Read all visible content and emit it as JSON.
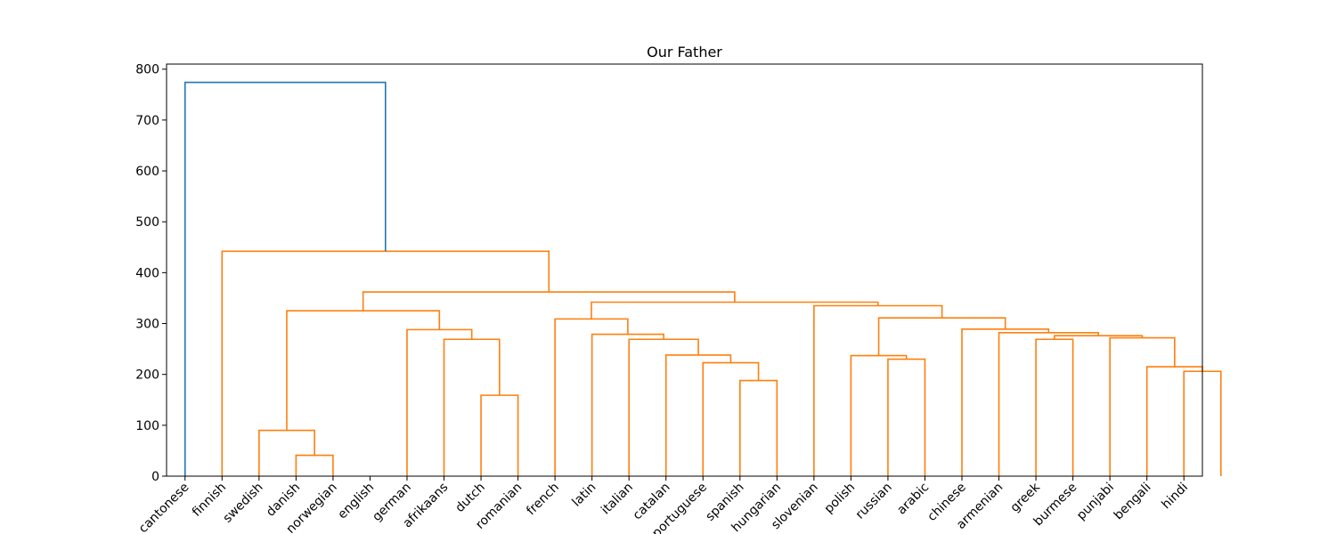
{
  "chart_data": {
    "type": "dendrogram",
    "title": "Our Father",
    "xlabel": "",
    "ylabel": "",
    "ylim": [
      0,
      810
    ],
    "yticks": [
      0,
      100,
      200,
      300,
      400,
      500,
      600,
      700,
      800
    ],
    "leaves": [
      "cantonese",
      "finnish",
      "swedish",
      "danish",
      "norwegian",
      "english",
      "german",
      "afrikaans",
      "dutch",
      "romanian",
      "french",
      "latin",
      "italian",
      "catalan",
      "portuguese",
      "spanish",
      "hungarian",
      "slovenian",
      "polish",
      "russian",
      "arabic",
      "chinese",
      "armenian",
      "greek",
      "burmese",
      "punjabi",
      "bengali",
      "hindi"
    ],
    "colors": {
      "root": "#1f77b4",
      "cluster": "#ff7f0e"
    },
    "merges": [
      {
        "a": "L3",
        "b": "L4",
        "height": 41,
        "color": "cluster"
      },
      {
        "a": "L2",
        "b": "M0",
        "height": 90,
        "color": "cluster"
      },
      {
        "a": "L8",
        "b": "L9",
        "height": 159,
        "color": "cluster"
      },
      {
        "a": "L7",
        "b": "M2",
        "height": 269,
        "color": "cluster"
      },
      {
        "a": "L6",
        "b": "M3",
        "height": 288,
        "color": "cluster"
      },
      {
        "a": "M1",
        "b": "M4",
        "height": 325,
        "color": "cluster"
      },
      {
        "a": "L15",
        "b": "L16",
        "height": 188,
        "color": "cluster"
      },
      {
        "a": "L14",
        "b": "M6",
        "height": 223,
        "color": "cluster"
      },
      {
        "a": "L13",
        "b": "M7",
        "height": 238,
        "color": "cluster"
      },
      {
        "a": "L12",
        "b": "M8",
        "height": 269,
        "color": "cluster"
      },
      {
        "a": "L11",
        "b": "M9",
        "height": 279,
        "color": "cluster"
      },
      {
        "a": "L10",
        "b": "M10",
        "height": 309,
        "color": "cluster"
      },
      {
        "a": "L19",
        "b": "L20",
        "height": 230,
        "color": "cluster"
      },
      {
        "a": "L18",
        "b": "M12",
        "height": 237,
        "color": "cluster"
      },
      {
        "a": "L27",
        "b": "L28",
        "height": 206,
        "color": "cluster"
      },
      {
        "a": "L26",
        "b": "M14",
        "height": 215,
        "color": "cluster"
      },
      {
        "a": "L25",
        "b": "M15",
        "height": 272,
        "color": "cluster"
      },
      {
        "a": "L23",
        "b": "L24",
        "height": 269,
        "color": "cluster"
      },
      {
        "a": "M17",
        "b": "M16",
        "height": 276,
        "color": "cluster"
      },
      {
        "a": "L22",
        "b": "M18",
        "height": 282,
        "color": "cluster"
      },
      {
        "a": "L21",
        "b": "M19",
        "height": 289,
        "color": "cluster"
      },
      {
        "a": "M13",
        "b": "M20",
        "height": 311,
        "color": "cluster"
      },
      {
        "a": "L17",
        "b": "M21",
        "height": 335,
        "color": "cluster"
      },
      {
        "a": "M11",
        "b": "M22",
        "height": 342,
        "color": "cluster"
      },
      {
        "a": "M5",
        "b": "M23",
        "height": 362,
        "color": "cluster"
      },
      {
        "a": "L2x",
        "b": "M24",
        "height": 442,
        "color": "cluster"
      },
      {
        "a": "L1",
        "b": "M25",
        "height": 774,
        "color": "root"
      }
    ]
  }
}
